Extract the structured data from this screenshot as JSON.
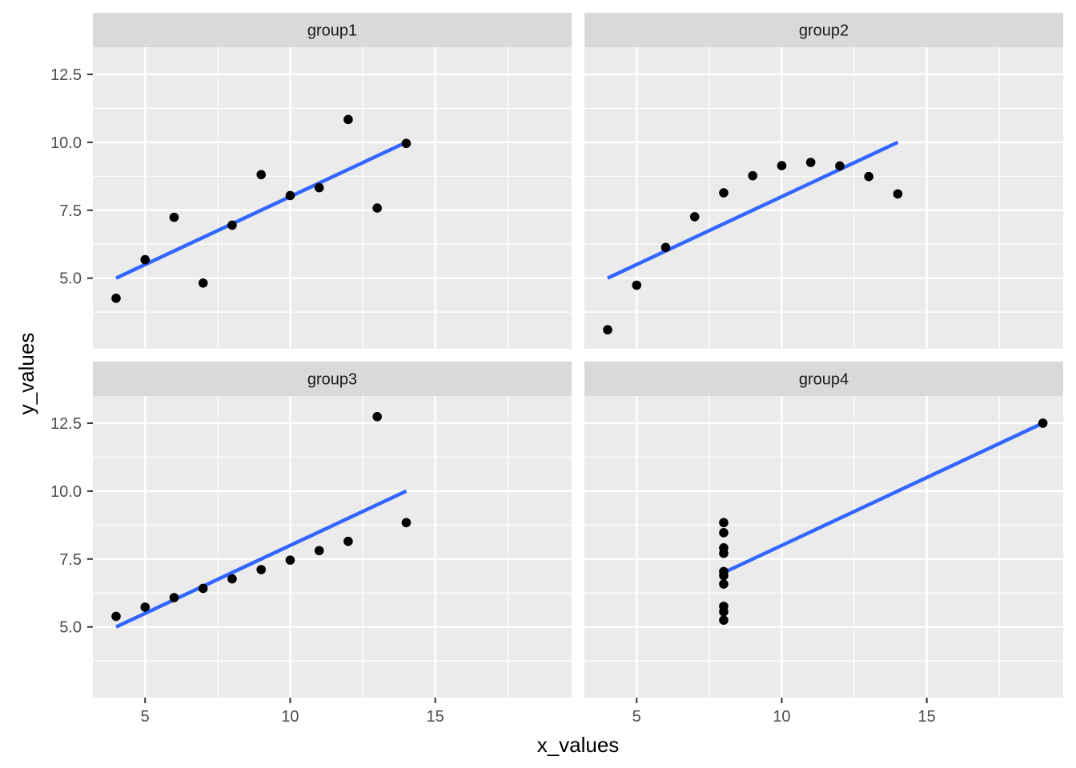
{
  "chart_data": {
    "type": "scatter",
    "layout": "facet_wrap 2x2",
    "xlabel": "x_values",
    "ylabel": "y_values",
    "xlim": [
      3.2,
      19.7
    ],
    "ylim": [
      2.4,
      13.5
    ],
    "x_ticks": [
      5,
      10,
      15
    ],
    "y_ticks": [
      5.0,
      7.5,
      10.0,
      12.5
    ],
    "x_tick_labels": [
      "5",
      "10",
      "15"
    ],
    "y_tick_labels": [
      "5.0",
      "7.5",
      "10.0",
      "12.5"
    ],
    "grid": true,
    "point_color": "#000000",
    "line_color": "#3366FF",
    "panel_background": "#EBEBEB",
    "strip_background": "#D9D9D9",
    "panels": [
      {
        "label": "group1",
        "x": [
          10,
          8,
          13,
          9,
          11,
          14,
          6,
          4,
          12,
          7,
          5
        ],
        "y": [
          8.04,
          6.95,
          7.58,
          8.81,
          8.33,
          9.96,
          7.24,
          4.26,
          10.84,
          4.82,
          5.68
        ],
        "fit": {
          "intercept": 3.0,
          "slope": 0.5,
          "x_range": [
            4,
            14
          ]
        }
      },
      {
        "label": "group2",
        "x": [
          10,
          8,
          13,
          9,
          11,
          14,
          6,
          4,
          12,
          7,
          5
        ],
        "y": [
          9.14,
          8.14,
          8.74,
          8.77,
          9.26,
          8.1,
          6.13,
          3.1,
          9.13,
          7.26,
          4.74
        ],
        "fit": {
          "intercept": 3.0,
          "slope": 0.5,
          "x_range": [
            4,
            14
          ]
        }
      },
      {
        "label": "group3",
        "x": [
          10,
          8,
          13,
          9,
          11,
          14,
          6,
          4,
          12,
          7,
          5
        ],
        "y": [
          7.46,
          6.77,
          12.74,
          7.11,
          7.81,
          8.84,
          6.08,
          5.39,
          8.15,
          6.42,
          5.73
        ],
        "fit": {
          "intercept": 3.0,
          "slope": 0.5,
          "x_range": [
            4,
            14
          ]
        }
      },
      {
        "label": "group4",
        "x": [
          8,
          8,
          8,
          8,
          8,
          8,
          8,
          19,
          8,
          8,
          8
        ],
        "y": [
          6.58,
          5.76,
          7.71,
          8.84,
          8.47,
          7.04,
          5.25,
          12.5,
          5.56,
          7.91,
          6.89
        ],
        "fit": {
          "intercept": 3.0,
          "slope": 0.5,
          "x_range": [
            8,
            19
          ]
        }
      }
    ]
  }
}
